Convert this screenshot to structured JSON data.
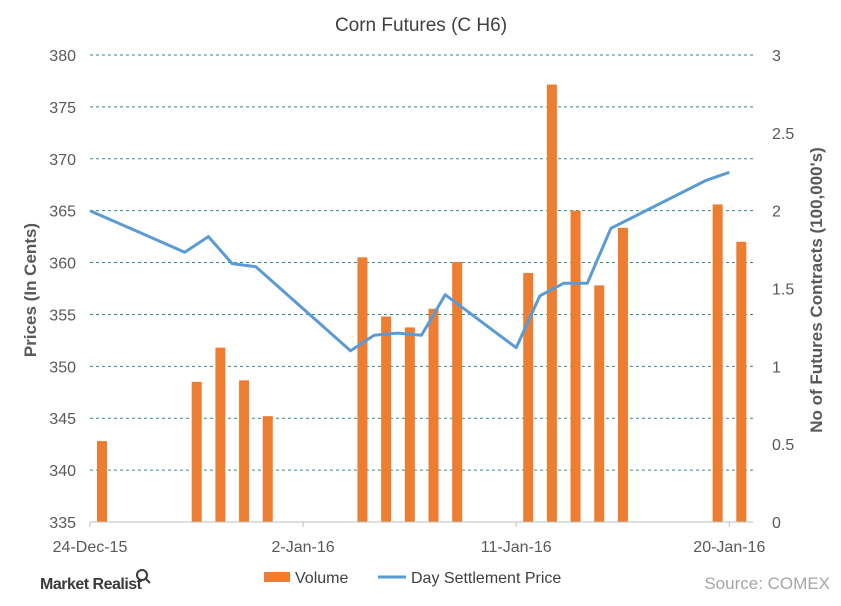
{
  "chart_data": {
    "type": "bar",
    "title": "Corn Futures  (C H6)",
    "ylabel_left": "Prices (In Cents)",
    "ylabel_right": "No of Futures Contracts (100,000's)",
    "ylim_left": [
      335,
      380
    ],
    "yticks_left": [
      "335",
      "340",
      "345",
      "350",
      "355",
      "360",
      "365",
      "370",
      "375",
      "380"
    ],
    "ylim_right": [
      0,
      3
    ],
    "yticks_right": [
      "0",
      "0.5",
      "1",
      "1.5",
      "2",
      "2.5",
      "3"
    ],
    "x_start": "2015-12-24",
    "x_end": "2016-01-21",
    "x_tick_labels": [
      {
        "date": "2015-12-24",
        "label": "24-Dec-15"
      },
      {
        "date": "2016-01-02",
        "label": "2-Jan-16"
      },
      {
        "date": "2016-01-11",
        "label": "11-Jan-16"
      },
      {
        "date": "2016-01-20",
        "label": "20-Jan-16"
      }
    ],
    "grid": true,
    "legend_position": "bottom",
    "series": [
      {
        "name": "Volume",
        "type": "bar",
        "axis": "right",
        "color": "#ED7D31",
        "points": [
          {
            "x": "2015-12-24",
            "y": 0.52
          },
          {
            "x": "2015-12-28",
            "y": 0.9
          },
          {
            "x": "2015-12-29",
            "y": 1.12
          },
          {
            "x": "2015-12-30",
            "y": 0.91
          },
          {
            "x": "2015-12-31",
            "y": 0.68
          },
          {
            "x": "2016-01-04",
            "y": 1.7
          },
          {
            "x": "2016-01-05",
            "y": 1.32
          },
          {
            "x": "2016-01-06",
            "y": 1.25
          },
          {
            "x": "2016-01-07",
            "y": 1.37
          },
          {
            "x": "2016-01-08",
            "y": 1.67
          },
          {
            "x": "2016-01-11",
            "y": 1.6
          },
          {
            "x": "2016-01-12",
            "y": 2.81
          },
          {
            "x": "2016-01-13",
            "y": 2.0
          },
          {
            "x": "2016-01-14",
            "y": 1.52
          },
          {
            "x": "2016-01-15",
            "y": 1.89
          },
          {
            "x": "2016-01-19",
            "y": 2.04
          },
          {
            "x": "2016-01-20",
            "y": 1.8
          }
        ]
      },
      {
        "name": "Day Settlement Price",
        "type": "line",
        "axis": "left",
        "color": "#5B9BD5",
        "points": [
          {
            "x": "2015-12-24",
            "y": 365.0
          },
          {
            "x": "2015-12-28",
            "y": 361.0
          },
          {
            "x": "2015-12-29",
            "y": 362.5
          },
          {
            "x": "2015-12-30",
            "y": 359.9
          },
          {
            "x": "2015-12-31",
            "y": 359.6
          },
          {
            "x": "2016-01-04",
            "y": 351.5
          },
          {
            "x": "2016-01-05",
            "y": 353.0
          },
          {
            "x": "2016-01-06",
            "y": 353.2
          },
          {
            "x": "2016-01-07",
            "y": 353.0
          },
          {
            "x": "2016-01-08",
            "y": 356.9
          },
          {
            "x": "2016-01-11",
            "y": 351.8
          },
          {
            "x": "2016-01-12",
            "y": 356.8
          },
          {
            "x": "2016-01-13",
            "y": 358.0
          },
          {
            "x": "2016-01-14",
            "y": 358.0
          },
          {
            "x": "2016-01-15",
            "y": 363.3
          },
          {
            "x": "2016-01-19",
            "y": 367.9
          },
          {
            "x": "2016-01-20",
            "y": 368.7
          }
        ]
      }
    ]
  },
  "branding": {
    "logo_text": "Market Realist",
    "source_text": "Source: COMEX"
  }
}
